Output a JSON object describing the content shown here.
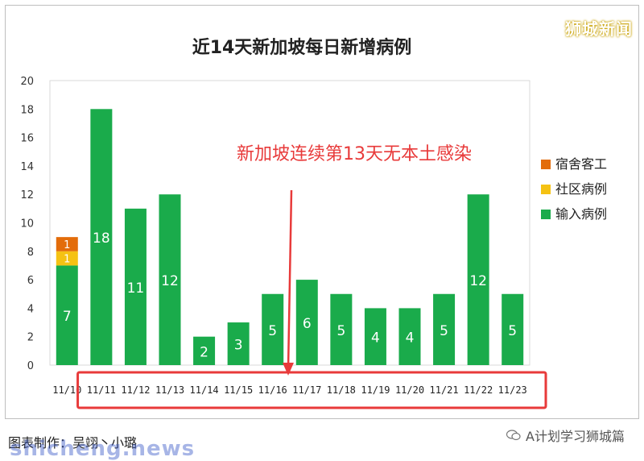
{
  "watermarks": {
    "top_right": "狮城新闻",
    "bottom_left": "shicheng.news"
  },
  "footer": {
    "credit": "图表制作：吴翊丶小璐",
    "wechat_source": "A计划学习狮城篇"
  },
  "colors": {
    "imported": "#1aab4b",
    "community": "#f5c213",
    "dorm": "#e36c0a",
    "annotation": "#e83a3a",
    "highlight_box": "#e83a3a"
  },
  "chart_data": {
    "type": "bar",
    "stacked": true,
    "title": "近14天新加坡每日新增病例",
    "annotation": "新加坡连续第13天无本土感染",
    "categories": [
      "11/10",
      "11/11",
      "11/12",
      "11/13",
      "11/14",
      "11/15",
      "11/16",
      "11/17",
      "11/18",
      "11/19",
      "11/20",
      "11/21",
      "11/22",
      "11/23"
    ],
    "series": [
      {
        "name": "输入病例",
        "color": "#1aab4b",
        "values": [
          7,
          18,
          11,
          12,
          2,
          3,
          5,
          6,
          5,
          4,
          4,
          5,
          12,
          5
        ]
      },
      {
        "name": "社区病例",
        "color": "#f5c213",
        "values": [
          1,
          0,
          0,
          0,
          0,
          0,
          0,
          0,
          0,
          0,
          0,
          0,
          0,
          0
        ]
      },
      {
        "name": "宿舍客工",
        "color": "#e36c0a",
        "values": [
          1,
          0,
          0,
          0,
          0,
          0,
          0,
          0,
          0,
          0,
          0,
          0,
          0,
          0
        ]
      }
    ],
    "legend_order": [
      "宿舍客工",
      "社区病例",
      "输入病例"
    ],
    "legend_position": "right",
    "ylim": [
      0,
      20
    ],
    "yticks": [
      0,
      2,
      4,
      6,
      8,
      10,
      12,
      14,
      16,
      18,
      20
    ],
    "grid": false
  }
}
